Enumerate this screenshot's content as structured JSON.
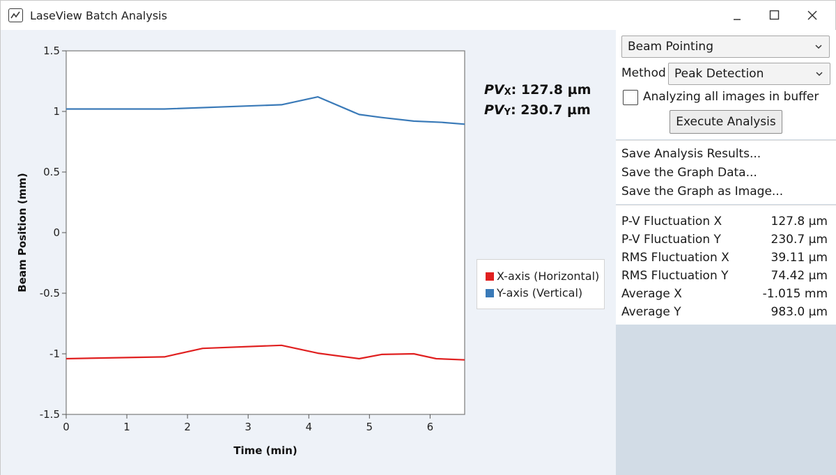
{
  "window": {
    "title": "LaseView Batch Analysis"
  },
  "readout": {
    "pv_x_prefix": "PV",
    "pv_x_sub": "X",
    "pv_x_value": ": 127.8 µm",
    "pv_y_prefix": "PV",
    "pv_y_sub": "Y",
    "pv_y_value": ": 230.7 µm"
  },
  "controls": {
    "analysis_type": "Beam Pointing",
    "method_label": "Method",
    "method_value": "Peak Detection",
    "analyze_all_label": "Analyzing all images in buffer",
    "analyze_all_checked": false,
    "execute_label": "Execute Analysis"
  },
  "save_menu": {
    "results": "Save Analysis Results...",
    "graph_data": "Save the Graph Data...",
    "graph_image": "Save the Graph as Image..."
  },
  "stats": [
    {
      "label": "P-V Fluctuation X",
      "value": "127.8 µm"
    },
    {
      "label": "P-V Fluctuation Y",
      "value": "230.7 µm"
    },
    {
      "label": "RMS Fluctuation X",
      "value": "39.11 µm"
    },
    {
      "label": "RMS Fluctuation Y",
      "value": "74.42 µm"
    },
    {
      "label": "Average X",
      "value": "-1.015 mm"
    },
    {
      "label": "Average Y",
      "value": "983.0 µm"
    }
  ],
  "chart_data": {
    "type": "line",
    "xlabel": "Time (min)",
    "ylabel": "Beam Position (mm)",
    "xlim": [
      0,
      6.57
    ],
    "ylim": [
      -1.5,
      1.5
    ],
    "x_ticks": [
      "0",
      "1",
      "2",
      "3",
      "4",
      "5",
      "6"
    ],
    "y_ticks": [
      "1.5",
      "1",
      "0.5",
      "0",
      "-0.5",
      "-1",
      "-1.5"
    ],
    "legend_position": "right",
    "series": [
      {
        "name": "X-axis (Horizontal)",
        "color": "#e02020",
        "x": [
          0,
          1.62,
          2.25,
          3.55,
          4.15,
          4.83,
          5.2,
          5.73,
          6.1,
          6.57
        ],
        "y": [
          -1.04,
          -1.025,
          -0.955,
          -0.93,
          -0.995,
          -1.04,
          -1.005,
          -1.0,
          -1.04,
          -1.05
        ]
      },
      {
        "name": "Y-axis (Vertical)",
        "color": "#3a7ab8",
        "x": [
          0,
          1.62,
          3.55,
          4.15,
          4.83,
          5.2,
          5.73,
          6.2,
          6.57
        ],
        "y": [
          1.02,
          1.02,
          1.055,
          1.12,
          0.975,
          0.95,
          0.92,
          0.91,
          0.895
        ]
      }
    ]
  }
}
